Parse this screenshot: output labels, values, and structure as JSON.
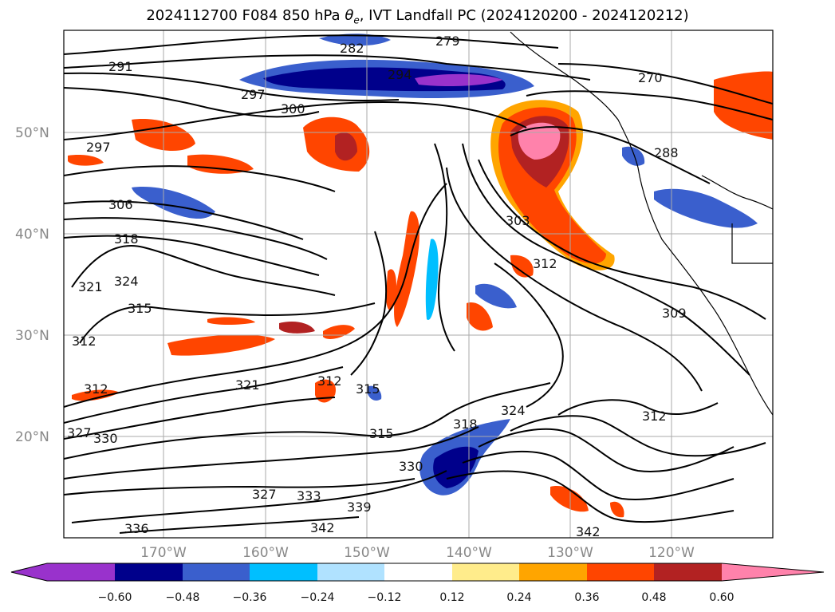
{
  "title_prefix": "2024112700 F084 850 hPa ",
  "title_symbol": "θ",
  "title_symbol_sub": "e",
  "title_suffix": ", IVT Landfall PC (2024120200 - 2024120212)",
  "lat_labels": [
    "50°N",
    "40°N",
    "30°N",
    "20°N"
  ],
  "lon_labels": [
    "170°W",
    "160°W",
    "150°W",
    "140°W",
    "130°W",
    "120°W"
  ],
  "contour_labels": [
    "291",
    "282",
    "279",
    "294",
    "270",
    "297",
    "300",
    "297",
    "288",
    "306",
    "303",
    "318",
    "312",
    "324",
    "321",
    "315",
    "309",
    "312",
    "312",
    "321",
    "312",
    "315",
    "318",
    "324",
    "315",
    "327",
    "330",
    "312",
    "330",
    "327",
    "333",
    "339",
    "336",
    "342",
    "342"
  ],
  "colorbar": {
    "colors": [
      "#9932cc",
      "#00008b",
      "#3a5fcd",
      "#00bfff",
      "#b0e2ff",
      "#ffffff",
      "#ffec8b",
      "#ffa500",
      "#ff4500",
      "#b22222",
      "#ff82ab"
    ],
    "tick_labels": [
      "−0.60",
      "−0.48",
      "−0.36",
      "−0.24",
      "−0.12",
      "0.12",
      "0.24",
      "0.36",
      "0.48",
      "0.60"
    ]
  }
}
